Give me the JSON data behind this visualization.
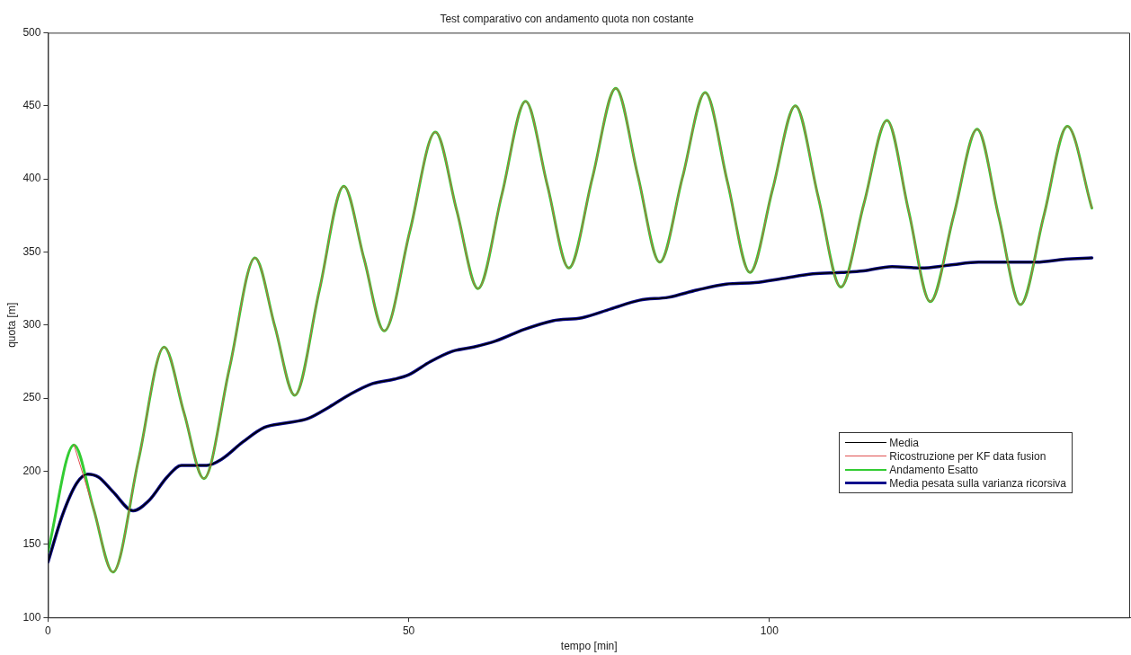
{
  "chart_data": {
    "type": "line",
    "title": "Test comparativo con andamento quota non costante",
    "xlabel": "tempo [min]",
    "ylabel": "quota [m]",
    "xlim": [
      0,
      150
    ],
    "xticks": [
      0,
      50,
      100
    ],
    "ylim": [
      100,
      500
    ],
    "yticks": [
      100,
      150,
      200,
      250,
      300,
      350,
      400,
      450,
      500
    ],
    "grid": false,
    "legend": "right",
    "marker": "none",
    "line_style": "solid",
    "series": [
      {
        "name": "Media",
        "color": "#000000",
        "x": [
          0,
          2,
          4,
          5.5,
          7,
          9,
          11.8,
          14,
          16.5,
          18.5,
          22,
          24,
          27,
          30,
          33,
          36,
          39,
          42,
          45,
          48,
          50,
          53,
          56,
          59,
          62,
          66,
          70,
          74,
          78,
          82,
          86,
          90,
          94,
          98,
          102,
          106,
          110,
          113,
          117,
          121,
          125,
          129,
          133,
          137,
          141,
          144.7
        ],
        "values": [
          138,
          170,
          192,
          198,
          196,
          186,
          173,
          180,
          196,
          204,
          204,
          208,
          220,
          230,
          233,
          236,
          244,
          253,
          260,
          263,
          266,
          275,
          282,
          285,
          289,
          297,
          303,
          305,
          311,
          317,
          319,
          324,
          328,
          329,
          332,
          335,
          336,
          337,
          340,
          339,
          341,
          343,
          343,
          343,
          345,
          346
        ]
      },
      {
        "name": "Ricostruzione per  KF data fusion",
        "color": "#e05050",
        "x": [
          3.6,
          6.3,
          9.0,
          12.55,
          16.1,
          18.85,
          21.6,
          25.15,
          28.7,
          31.45,
          34.2,
          37.6,
          41.0,
          43.8,
          46.6,
          50.15,
          53.7,
          56.65,
          59.6,
          62.9,
          66.2,
          69.2,
          72.2,
          75.45,
          78.7,
          81.75,
          84.8,
          87.95,
          91.1,
          94.2,
          97.3,
          100.45,
          103.6,
          106.75,
          109.9,
          113.1,
          116.3,
          119.3,
          122.3,
          125.55,
          128.8,
          131.8,
          134.8,
          138.05,
          141.3,
          144.7
        ],
        "values": [
          218,
          174.5,
          131,
          208,
          285,
          240,
          195,
          270.5,
          346,
          299,
          252,
          323.5,
          395,
          345.5,
          296,
          364,
          432,
          378.5,
          325,
          389,
          453,
          396,
          339,
          400.5,
          462,
          402.5,
          343,
          401,
          459,
          397.5,
          336,
          393,
          450,
          388,
          326,
          383,
          440,
          378,
          316,
          375,
          434,
          374,
          314,
          375,
          436,
          380
        ]
      },
      {
        "name": "Andamento Esatto",
        "color": "#33cc33",
        "x": [
          0,
          3.6,
          6.3,
          9.0,
          12.55,
          16.1,
          18.85,
          21.6,
          25.15,
          28.7,
          31.45,
          34.2,
          37.6,
          41.0,
          43.8,
          46.6,
          50.15,
          53.7,
          56.65,
          59.6,
          62.9,
          66.2,
          69.2,
          72.2,
          75.45,
          78.7,
          81.75,
          84.8,
          87.95,
          91.1,
          94.2,
          97.3,
          100.45,
          103.6,
          106.75,
          109.9,
          113.1,
          116.3,
          119.3,
          122.3,
          125.55,
          128.8,
          131.8,
          134.8,
          138.05,
          141.3,
          144.7
        ],
        "values": [
          145,
          218,
          174.5,
          131,
          208,
          285,
          240,
          195,
          270.5,
          346,
          299,
          252,
          323.5,
          395,
          345.5,
          296,
          364,
          432,
          378.5,
          325,
          389,
          453,
          396,
          339,
          400.5,
          462,
          402.5,
          343,
          401,
          459,
          397.5,
          336,
          393,
          450,
          388,
          326,
          383,
          440,
          378,
          316,
          375,
          434,
          374,
          314,
          375,
          436,
          380
        ]
      },
      {
        "name": "Media pesata sulla varianza ricorsiva",
        "color": "#0a0a8c",
        "x": [
          0,
          2,
          4,
          5.5,
          7,
          9,
          11.8,
          14,
          16.5,
          18.5,
          22,
          24,
          27,
          30,
          33,
          36,
          39,
          42,
          45,
          48,
          50,
          53,
          56,
          59,
          62,
          66,
          70,
          74,
          78,
          82,
          86,
          90,
          94,
          98,
          102,
          106,
          110,
          113,
          117,
          121,
          125,
          129,
          133,
          137,
          141,
          144.7
        ],
        "values": [
          138,
          170,
          192,
          198,
          196,
          186,
          173,
          180,
          196,
          204,
          204,
          208,
          220,
          230,
          233,
          236,
          244,
          253,
          260,
          263,
          266,
          275,
          282,
          285,
          289,
          297,
          303,
          305,
          311,
          317,
          319,
          324,
          328,
          329,
          332,
          335,
          336,
          337,
          340,
          339,
          341,
          343,
          343,
          343,
          345,
          346
        ]
      }
    ]
  }
}
